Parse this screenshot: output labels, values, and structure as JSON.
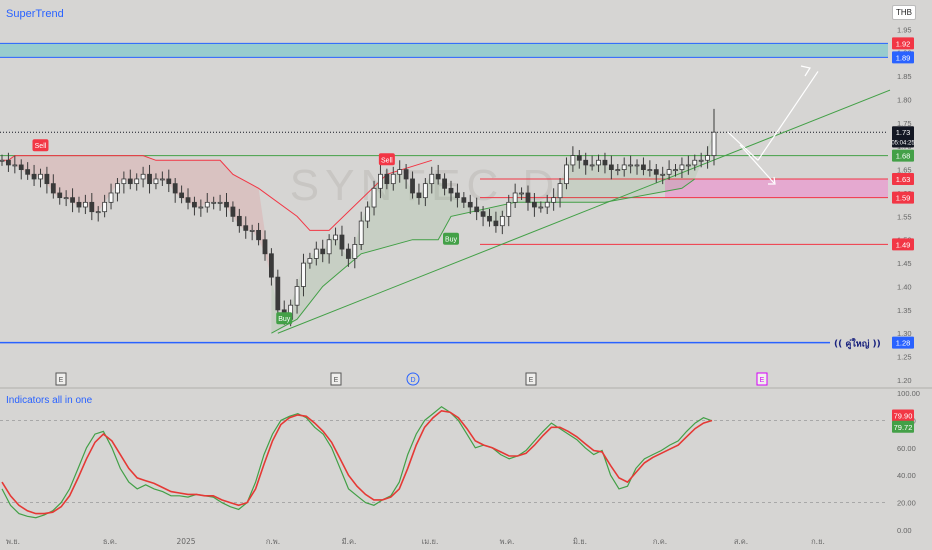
{
  "indicator_top": "SuperTrend",
  "indicator_bottom": "Indicators all in one",
  "currency": "THB",
  "watermark": "SYNTEC D",
  "zone_label": "(( คู่ใหญ่ ))",
  "signals": {
    "sell": "Sell",
    "buy": "Buy"
  },
  "event_markers": [
    {
      "date_label": "~พ.ย.",
      "text": "E",
      "color": "#555555"
    },
    {
      "date_label": "~มี.ค.",
      "text": "E",
      "color": "#555555"
    },
    {
      "date_label": "~เม.ย.",
      "text": "D",
      "color": "#2962ff"
    },
    {
      "date_label": "~พ.ค.",
      "text": "E",
      "color": "#555555"
    },
    {
      "date_label": "~ส.ค.",
      "text": "E",
      "color": "#d500f9"
    }
  ],
  "price_axis": {
    "ticks": [
      "1.95",
      "1.90",
      "1.85",
      "1.80",
      "1.75",
      "1.70",
      "1.65",
      "1.60",
      "1.55",
      "1.50",
      "1.45",
      "1.40",
      "1.35",
      "1.30",
      "1.25",
      "1.20"
    ],
    "badges": [
      {
        "text": "1.92",
        "value": 1.92,
        "color": "#f23645"
      },
      {
        "text": "1.89",
        "value": 1.89,
        "color": "#2962ff"
      },
      {
        "text": "1.73",
        "value": 1.73,
        "color": "#131722"
      },
      {
        "text": "05:04:25",
        "value": 1.71,
        "color": "#131722"
      },
      {
        "text": "1.68",
        "value": 1.68,
        "color": "#43a047"
      },
      {
        "text": "1.63",
        "value": 1.63,
        "color": "#f23645"
      },
      {
        "text": "1.59",
        "value": 1.59,
        "color": "#f23645"
      },
      {
        "text": "1.49",
        "value": 1.49,
        "color": "#f23645"
      },
      {
        "text": "1.28",
        "value": 1.28,
        "color": "#2962ff"
      }
    ]
  },
  "osc_axis": {
    "ticks": [
      "100.00",
      "80.00",
      "60.00",
      "40.00",
      "20.00",
      "0.00"
    ],
    "badges": [
      {
        "text": "79.90",
        "value": 79.9,
        "color": "#f23645"
      },
      {
        "text": "79.72",
        "value": 79.72,
        "color": "#43a047"
      }
    ]
  },
  "time_axis": [
    "พ.ย.",
    "ธ.ค.",
    "2025",
    "ก.พ.",
    "มี.ค.",
    "เม.ย.",
    "พ.ค.",
    "มิ.ย.",
    "ก.ค.",
    "ส.ค.",
    "ก.ย."
  ],
  "chart_data": {
    "type": "candlestick",
    "symbol_watermark": "SYNTEC D",
    "x_labels": [
      "พ.ย.",
      "ธ.ค.",
      "2025",
      "ก.พ.",
      "มี.ค.",
      "เม.ย.",
      "พ.ค.",
      "มิ.ย.",
      "ก.ค.",
      "ส.ค.",
      "ก.ย."
    ],
    "ylim": [
      1.2,
      1.97
    ],
    "close_series": [
      1.67,
      1.66,
      1.66,
      1.65,
      1.64,
      1.63,
      1.64,
      1.62,
      1.6,
      1.59,
      1.59,
      1.58,
      1.57,
      1.58,
      1.56,
      1.56,
      1.58,
      1.6,
      1.62,
      1.63,
      1.62,
      1.63,
      1.64,
      1.62,
      1.63,
      1.63,
      1.62,
      1.6,
      1.59,
      1.58,
      1.57,
      1.57,
      1.58,
      1.58,
      1.58,
      1.57,
      1.55,
      1.53,
      1.52,
      1.52,
      1.5,
      1.47,
      1.42,
      1.35,
      1.33,
      1.36,
      1.4,
      1.45,
      1.46,
      1.48,
      1.47,
      1.5,
      1.51,
      1.48,
      1.46,
      1.49,
      1.54,
      1.57,
      1.61,
      1.64,
      1.62,
      1.64,
      1.65,
      1.63,
      1.6,
      1.59,
      1.62,
      1.64,
      1.63,
      1.61,
      1.6,
      1.59,
      1.58,
      1.57,
      1.56,
      1.55,
      1.54,
      1.53,
      1.55,
      1.58,
      1.6,
      1.6,
      1.58,
      1.57,
      1.57,
      1.58,
      1.59,
      1.62,
      1.66,
      1.68,
      1.67,
      1.66,
      1.66,
      1.67,
      1.66,
      1.65,
      1.65,
      1.66,
      1.66,
      1.66,
      1.65,
      1.65,
      1.64,
      1.64,
      1.65,
      1.65,
      1.66,
      1.66,
      1.67,
      1.67,
      1.68,
      1.73
    ],
    "supertrend": {
      "sell_line": [
        [
          0,
          1.67
        ],
        [
          1,
          1.67
        ],
        [
          2,
          1.68
        ],
        [
          16,
          1.68
        ],
        [
          22,
          1.68
        ],
        [
          24,
          1.67
        ],
        [
          34,
          1.67
        ],
        [
          36,
          1.64
        ],
        [
          40,
          1.61
        ],
        [
          46,
          1.55
        ],
        [
          48,
          1.52
        ],
        [
          51,
          1.52
        ],
        [
          60,
          1.64
        ],
        [
          67,
          1.67
        ]
      ],
      "buy_line": [
        [
          42,
          1.3
        ],
        [
          46,
          1.33
        ],
        [
          50,
          1.4
        ],
        [
          56,
          1.47
        ],
        [
          64,
          1.5
        ],
        [
          68,
          1.5
        ],
        [
          70,
          1.55
        ],
        [
          80,
          1.58
        ],
        [
          94,
          1.58
        ],
        [
          106,
          1.61
        ],
        [
          108,
          1.63
        ]
      ],
      "sell_signals": [
        {
          "i": 6,
          "price": 1.7
        },
        {
          "i": 60,
          "price": 1.67
        }
      ],
      "buy_signals": [
        {
          "i": 44,
          "price": 1.33
        },
        {
          "i": 70,
          "price": 1.5
        }
      ]
    },
    "levels": [
      {
        "name": "resistance_zone",
        "low": 1.89,
        "high": 1.92,
        "color": "#7ec8cc"
      },
      {
        "name": "support_zone",
        "low": 1.59,
        "high": 1.63,
        "color": "#e8a1cf"
      },
      {
        "name": "support_line",
        "value": 1.68,
        "color": "#43a047"
      },
      {
        "name": "sell_level",
        "value": 1.49,
        "color": "#f23645"
      },
      {
        "name": "major_level",
        "value": 1.28,
        "color": "#2962ff"
      },
      {
        "name": "last_price",
        "value": 1.73,
        "color": "#131722"
      }
    ],
    "oscillator": {
      "ylim": [
        0,
        100
      ],
      "levels": [
        80,
        20
      ],
      "fast": [
        30,
        18,
        12,
        10,
        9,
        11,
        14,
        20,
        30,
        45,
        60,
        70,
        72,
        60,
        45,
        35,
        30,
        33,
        30,
        28,
        25,
        25,
        24,
        26,
        25,
        24,
        20,
        17,
        15,
        20,
        35,
        55,
        70,
        80,
        83,
        85,
        82,
        75,
        70,
        60,
        45,
        30,
        25,
        20,
        18,
        22,
        25,
        35,
        55,
        70,
        80,
        85,
        90,
        86,
        80,
        70,
        60,
        62,
        60,
        55,
        52,
        54,
        58,
        65,
        72,
        78,
        74,
        70,
        66,
        60,
        55,
        58,
        40,
        30,
        32,
        45,
        52,
        55,
        58,
        62,
        65,
        72,
        78,
        82,
        79.72
      ],
      "slow": [
        35,
        25,
        18,
        14,
        12,
        12,
        13,
        17,
        25,
        38,
        52,
        64,
        70,
        65,
        55,
        45,
        38,
        36,
        34,
        31,
        28,
        27,
        26,
        26,
        25,
        25,
        22,
        20,
        18,
        20,
        30,
        48,
        65,
        77,
        82,
        84,
        83,
        78,
        72,
        64,
        52,
        40,
        32,
        26,
        22,
        22,
        24,
        30,
        45,
        62,
        75,
        82,
        87,
        86,
        82,
        74,
        65,
        62,
        60,
        57,
        54,
        54,
        56,
        62,
        69,
        75,
        75,
        72,
        68,
        63,
        58,
        57,
        47,
        38,
        35,
        42,
        49,
        53,
        56,
        59,
        62,
        68,
        74,
        78,
        79.9
      ]
    },
    "projection": [
      {
        "from": [
          1.73,
          0.81
        ],
        "to": [
          1.67,
          0.84
        ],
        "color": "#ffffff"
      },
      {
        "from": [
          1.67,
          0.84
        ],
        "to": [
          1.86,
          0.9
        ],
        "color": "#ffffff"
      },
      {
        "from": [
          1.7,
          0.86
        ],
        "to": [
          1.62,
          0.86
        ],
        "color": "#ffffff"
      }
    ]
  }
}
